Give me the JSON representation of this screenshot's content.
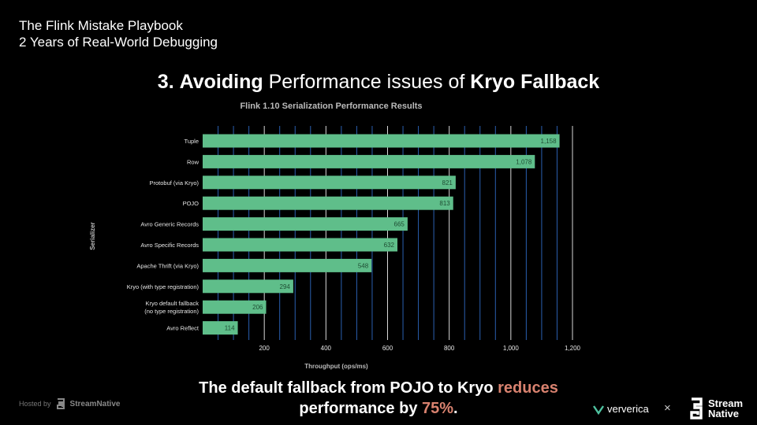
{
  "talk": {
    "line1": "The Flink Mistake Playbook",
    "line2": "2 Years of Real-World Debugging"
  },
  "section": {
    "number": "3.",
    "bold1": "Avoiding",
    "light": "Performance issues of",
    "bold2": "Kryo Fallback"
  },
  "chart_data": {
    "type": "bar",
    "orientation": "horizontal",
    "title": "Flink 1.10 Serialization Performance Results",
    "xlabel": "Throughput (ops/ms)",
    "ylabel": "Serializer",
    "xlim": [
      0,
      1200
    ],
    "xticks": [
      "200",
      "400",
      "600",
      "800",
      "1,000",
      "1,200"
    ],
    "grid": true,
    "bar_color": "#5fbe8a",
    "categories": [
      [
        "Tuple"
      ],
      [
        "Row"
      ],
      [
        "Protobuf (via Kryo)"
      ],
      [
        "POJO"
      ],
      [
        "Avro Generic Records"
      ],
      [
        "Avro Specific Records"
      ],
      [
        "Apache Thrift (via Kryo)"
      ],
      [
        "Kryo (with type registration)"
      ],
      [
        "Kryo default fallback",
        "(no type registration)"
      ],
      [
        "Avro Reflect"
      ]
    ],
    "values": [
      1158,
      1078,
      821,
      813,
      665,
      632,
      548,
      294,
      206,
      114
    ],
    "value_labels": [
      "1,158",
      "1,078",
      "821",
      "813",
      "665",
      "632",
      "548",
      "294",
      "206",
      "114"
    ]
  },
  "message": {
    "part1": "The default fallback from POJO to Kryo ",
    "highlight1": "reduces",
    "part2": "performance by ",
    "highlight2": "75%",
    "part3": "."
  },
  "footer": {
    "hosted_by": "Hosted by",
    "hosted_brand": "StreamNative",
    "ververica": "ververica",
    "cross": "×",
    "sn_line1": "Stream",
    "sn_line2": "Native"
  },
  "colors": {
    "highlight": "#d9826f"
  }
}
